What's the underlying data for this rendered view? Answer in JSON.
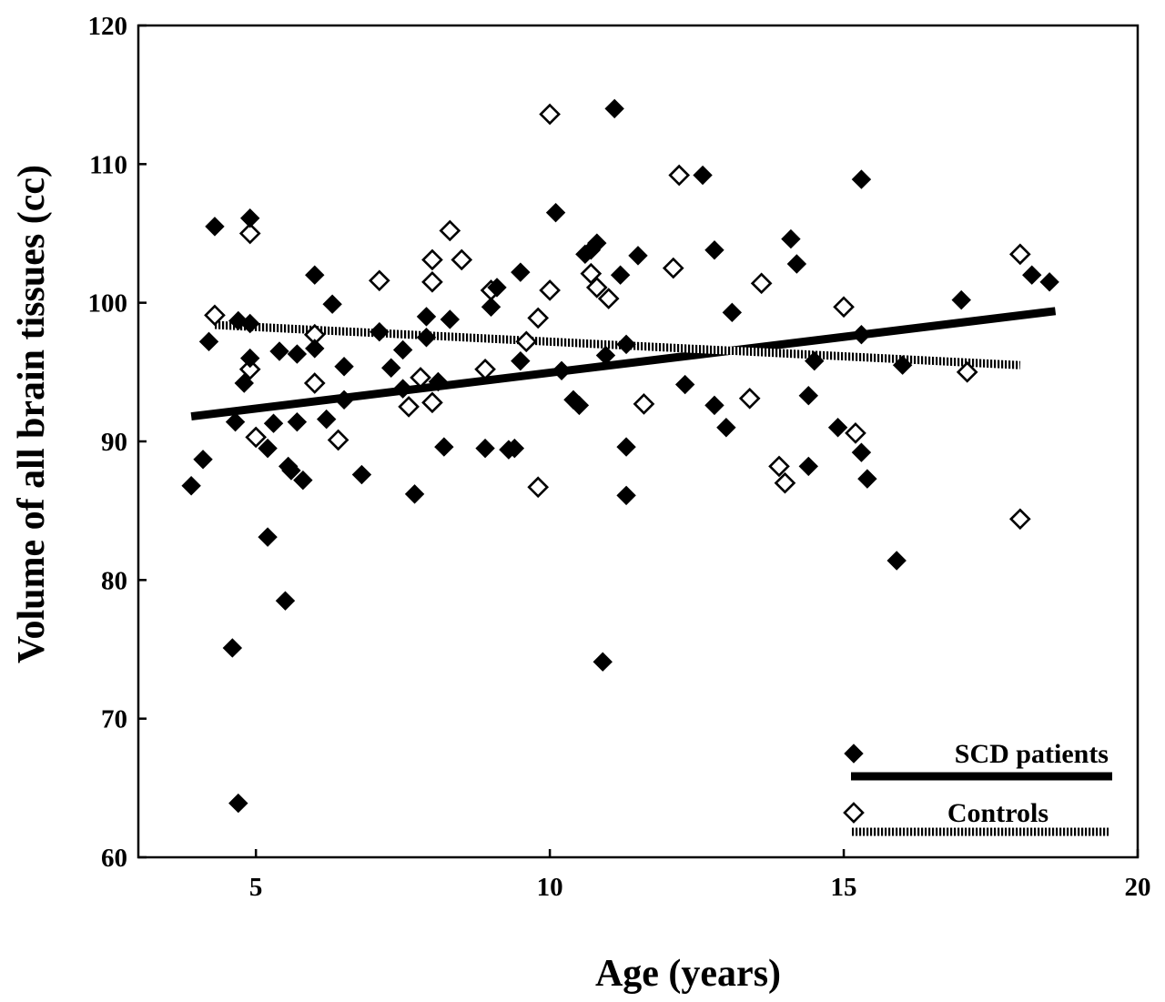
{
  "chart_data": {
    "type": "scatter",
    "title": "",
    "xlabel": "Age (years)",
    "ylabel": "Volume of all brain tissues (cc)",
    "xlim": [
      3,
      20
    ],
    "ylim": [
      60,
      120
    ],
    "xticks": [
      5,
      10,
      15,
      20
    ],
    "yticks": [
      60,
      70,
      80,
      90,
      100,
      110,
      120
    ],
    "grid": false,
    "legend_position": "bottom-right",
    "series": [
      {
        "name": "SCD patients",
        "marker": "filled-diamond",
        "line": "solid",
        "color": "#000000",
        "points": [
          [
            3.9,
            86.8
          ],
          [
            4.1,
            88.7
          ],
          [
            4.2,
            97.2
          ],
          [
            4.3,
            105.5
          ],
          [
            4.6,
            75.1
          ],
          [
            4.65,
            91.4
          ],
          [
            4.7,
            63.9
          ],
          [
            4.7,
            98.7
          ],
          [
            4.8,
            94.2
          ],
          [
            4.9,
            106.1
          ],
          [
            4.9,
            98.5
          ],
          [
            4.9,
            96.0
          ],
          [
            5.2,
            83.1
          ],
          [
            5.2,
            89.5
          ],
          [
            5.3,
            91.3
          ],
          [
            5.4,
            96.5
          ],
          [
            5.5,
            78.5
          ],
          [
            5.55,
            88.2
          ],
          [
            5.6,
            87.9
          ],
          [
            5.7,
            96.3
          ],
          [
            5.7,
            91.4
          ],
          [
            5.8,
            87.2
          ],
          [
            6.0,
            102.0
          ],
          [
            6.0,
            96.7
          ],
          [
            6.2,
            91.6
          ],
          [
            6.3,
            99.9
          ],
          [
            6.5,
            95.4
          ],
          [
            6.5,
            93.0
          ],
          [
            6.8,
            87.6
          ],
          [
            7.1,
            97.9
          ],
          [
            7.3,
            95.3
          ],
          [
            7.5,
            96.6
          ],
          [
            7.5,
            93.8
          ],
          [
            7.7,
            86.2
          ],
          [
            7.9,
            99.0
          ],
          [
            7.9,
            97.5
          ],
          [
            8.1,
            94.3
          ],
          [
            8.2,
            89.6
          ],
          [
            8.3,
            98.8
          ],
          [
            8.9,
            89.5
          ],
          [
            9.0,
            99.7
          ],
          [
            9.1,
            101.1
          ],
          [
            9.3,
            89.4
          ],
          [
            9.4,
            89.5
          ],
          [
            9.5,
            95.8
          ],
          [
            9.5,
            102.2
          ],
          [
            10.1,
            106.5
          ],
          [
            10.2,
            95.1
          ],
          [
            10.4,
            93.0
          ],
          [
            10.5,
            92.6
          ],
          [
            10.6,
            103.5
          ],
          [
            10.7,
            103.8
          ],
          [
            10.8,
            104.3
          ],
          [
            10.9,
            74.1
          ],
          [
            10.95,
            96.2
          ],
          [
            11.1,
            114.0
          ],
          [
            11.2,
            102.0
          ],
          [
            11.3,
            89.6
          ],
          [
            11.3,
            86.1
          ],
          [
            11.3,
            97.0
          ],
          [
            11.5,
            103.4
          ],
          [
            12.3,
            94.1
          ],
          [
            12.6,
            109.2
          ],
          [
            12.8,
            103.8
          ],
          [
            12.8,
            92.6
          ],
          [
            13.0,
            91.0
          ],
          [
            13.1,
            99.3
          ],
          [
            14.1,
            104.6
          ],
          [
            14.2,
            102.8
          ],
          [
            14.4,
            88.2
          ],
          [
            14.4,
            93.3
          ],
          [
            14.5,
            95.8
          ],
          [
            14.9,
            91.0
          ],
          [
            15.3,
            108.9
          ],
          [
            15.3,
            89.2
          ],
          [
            15.3,
            97.7
          ],
          [
            15.4,
            87.3
          ],
          [
            15.9,
            81.4
          ],
          [
            16.0,
            95.5
          ],
          [
            17.0,
            100.2
          ],
          [
            18.2,
            102.0
          ],
          [
            18.5,
            101.5
          ]
        ],
        "trend": {
          "x": [
            3.9,
            18.6
          ],
          "y": [
            91.8,
            99.4
          ]
        }
      },
      {
        "name": "Controls",
        "marker": "open-diamond",
        "line": "dashed",
        "color": "#000000",
        "points": [
          [
            4.3,
            99.1
          ],
          [
            4.9,
            105.0
          ],
          [
            4.9,
            95.2
          ],
          [
            5.0,
            90.3
          ],
          [
            6.0,
            94.2
          ],
          [
            6.0,
            97.7
          ],
          [
            6.4,
            90.1
          ],
          [
            7.1,
            101.6
          ],
          [
            7.6,
            92.5
          ],
          [
            7.8,
            94.6
          ],
          [
            8.0,
            103.1
          ],
          [
            8.0,
            101.5
          ],
          [
            8.0,
            92.8
          ],
          [
            8.3,
            105.2
          ],
          [
            8.5,
            103.1
          ],
          [
            8.9,
            95.2
          ],
          [
            9.0,
            100.9
          ],
          [
            9.6,
            97.2
          ],
          [
            9.8,
            98.9
          ],
          [
            9.8,
            86.7
          ],
          [
            10.0,
            113.6
          ],
          [
            10.0,
            100.9
          ],
          [
            10.7,
            102.1
          ],
          [
            10.8,
            101.1
          ],
          [
            11.0,
            100.3
          ],
          [
            11.6,
            92.7
          ],
          [
            12.1,
            102.5
          ],
          [
            12.2,
            109.2
          ],
          [
            13.4,
            93.1
          ],
          [
            13.6,
            101.4
          ],
          [
            13.9,
            88.2
          ],
          [
            14.0,
            87.0
          ],
          [
            15.0,
            99.7
          ],
          [
            15.2,
            90.6
          ],
          [
            17.1,
            95.0
          ],
          [
            18.0,
            103.5
          ],
          [
            18.0,
            84.4
          ]
        ],
        "trend": {
          "x": [
            4.3,
            18.0
          ],
          "y": [
            98.4,
            95.5
          ]
        }
      }
    ]
  }
}
